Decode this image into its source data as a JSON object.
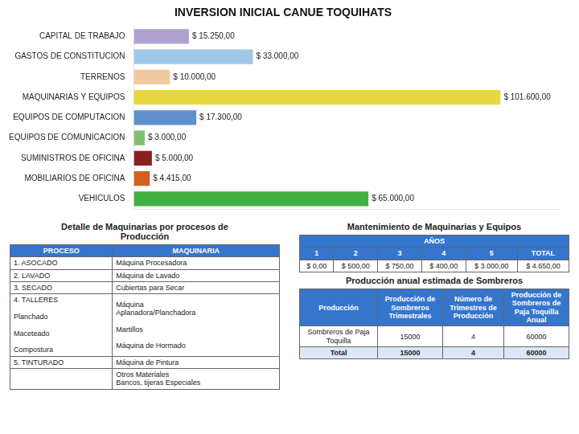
{
  "chart_data": [
    {
      "type": "bar",
      "orientation": "horizontal",
      "title": "INVERSION INICIAL CANUE TOQUIHATS",
      "categories": [
        "CAPITAL DE TRABAJO",
        "GASTOS DE CONSTITUCION",
        "TERRENOS",
        "MAQUINARIAS Y EQUIPOS",
        "EQUIPOS DE COMPUTACION",
        "EQUIPOS DE COMUNICACION",
        "SUMINISTROS DE OFICINA",
        "MOBILIARIOS DE OFICINA",
        "VEHICULOS"
      ],
      "values": [
        15250,
        33000,
        10000,
        101600,
        17300,
        3000,
        5000,
        4415,
        65000
      ],
      "value_labels": [
        "$ 15.250,00",
        "$ 33.000,00",
        "$ 10.000,00",
        "$ 101.600,00",
        "$ 17.300,00",
        "$ 3.000,00",
        "$ 5.000,00",
        "$ 4.415,00",
        "$ 65.000,00"
      ],
      "colors": [
        "#b0a0d0",
        "#a0c8e8",
        "#f0c8a0",
        "#e8d840",
        "#6090d0",
        "#80c070",
        "#8b2020",
        "#d06020",
        "#40b040"
      ],
      "xlim": [
        0,
        118000
      ],
      "xticks": [],
      "grid": false,
      "data_labels": true,
      "tick_labels": "y"
    },
    {
      "type": "table",
      "title": "Detalle de Maquinarias por procesos de\nProducción",
      "columns": [
        "PROCESO",
        "MAQUINARIA"
      ],
      "rows": [
        [
          "1. ASOCADO",
          "Máquina Procesadora"
        ],
        [
          "2. LAVADO",
          "Máquina de Lavado"
        ],
        [
          "3. SECADO",
          "Cubiertas para Secar"
        ],
        [
          "4. TALLERES\n\nPlanchado\n\nMaceteado\n\nCompostura",
          "Máquina\nAplanadora/Planchadora\n\nMartillos\n\nMáquina de Hormado"
        ],
        [
          "5. TINTURADO",
          "Máquina de Pintura"
        ],
        [
          "",
          "Otros Materiales\nBancos, tijeras Especiales"
        ]
      ]
    },
    {
      "type": "table",
      "title": "Mantenimiento de Maquinarias y Equipos",
      "header": "AÑOS",
      "columns": [
        "1",
        "2",
        "3",
        "4",
        "5",
        "TOTAL"
      ],
      "rows": [
        [
          "$ 0,00",
          "$ 500,00",
          "$ 750,00",
          "$ 400,00",
          "$ 3.000,00",
          "$ 4.650,00"
        ]
      ]
    },
    {
      "type": "table",
      "title": "Producción anual estimada de Sombreros",
      "columns": [
        "Producción",
        "Producción de\nSombreros\nTrimestrales",
        "Número de\nTrimestres de\nProducción",
        "Producción de\nSombreros de\nPaja Toquilla\nAnual"
      ],
      "rows": [
        [
          "Sombreros de Paja\nToquilla",
          "15000",
          "4",
          "60000"
        ],
        [
          "Total",
          "15000",
          "4",
          "60000"
        ]
      ]
    }
  ]
}
